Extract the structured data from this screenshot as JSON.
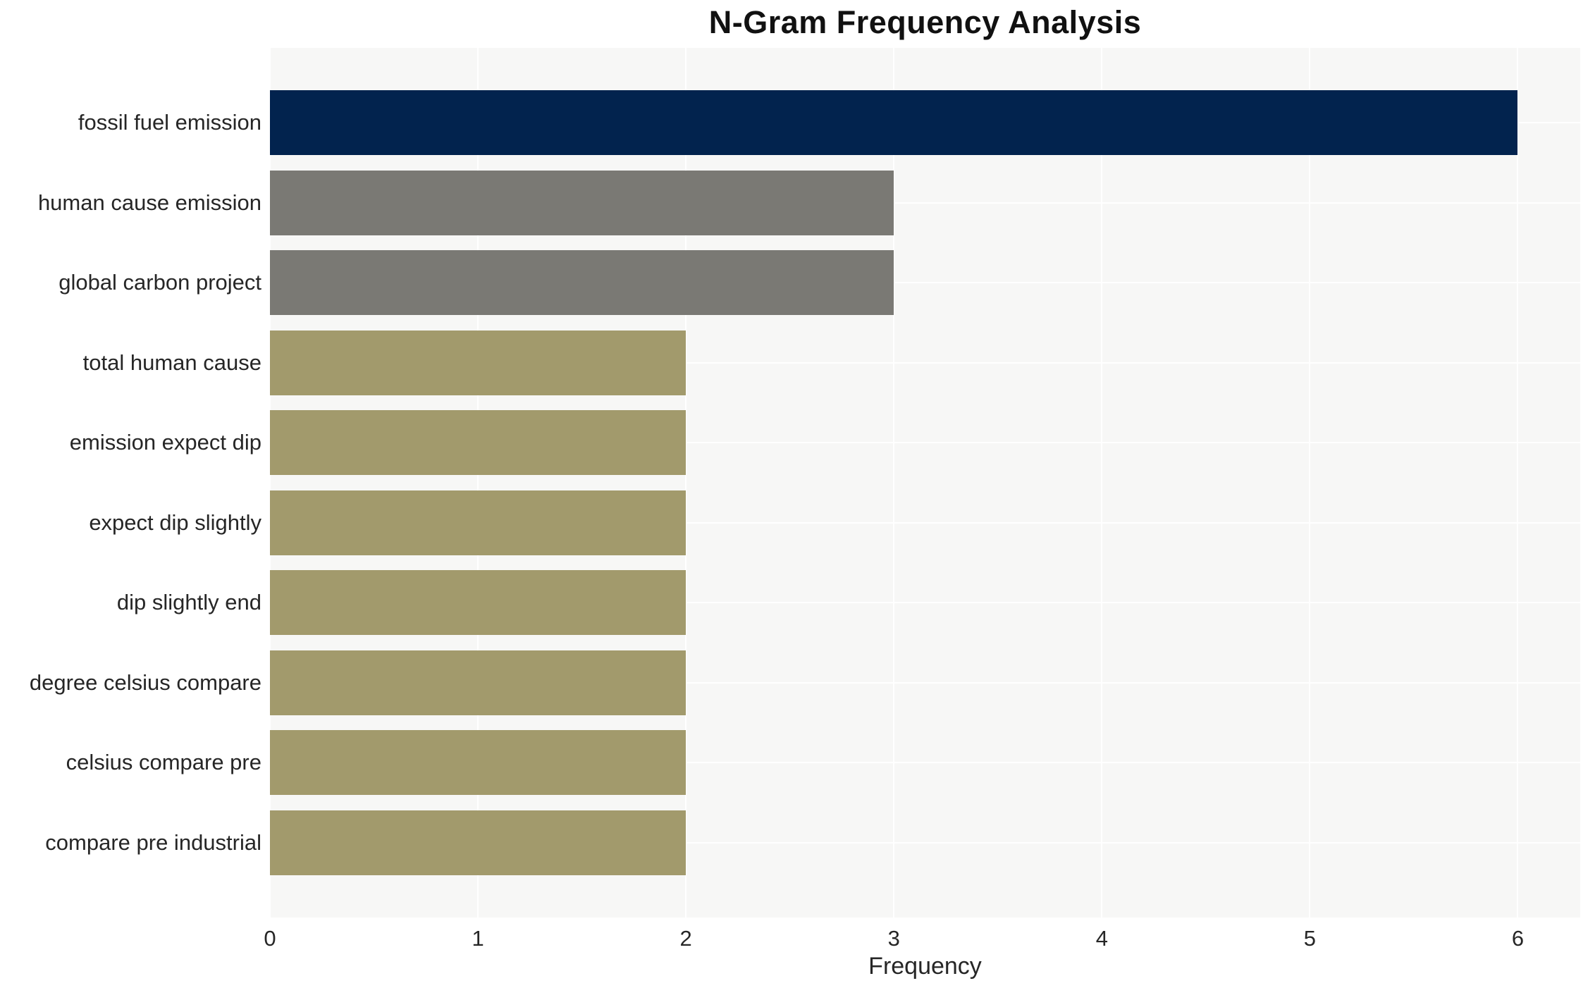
{
  "chart": {
    "title": "N-Gram Frequency Analysis",
    "xlabel": "Frequency"
  },
  "chart_data": {
    "type": "bar",
    "orientation": "horizontal",
    "title": "N-Gram Frequency Analysis",
    "xlabel": "Frequency",
    "ylabel": "",
    "categories": [
      "fossil fuel emission",
      "human cause emission",
      "global carbon project",
      "total human cause",
      "emission expect dip",
      "expect dip slightly",
      "dip slightly end",
      "degree celsius compare",
      "celsius compare pre",
      "compare pre industrial"
    ],
    "values": [
      6,
      3,
      3,
      2,
      2,
      2,
      2,
      2,
      2,
      2
    ],
    "bar_colors": [
      "#02234e",
      "#7a7974",
      "#7a7974",
      "#a29a6c",
      "#a29a6c",
      "#a29a6c",
      "#a29a6c",
      "#a29a6c",
      "#a29a6c",
      "#a29a6c"
    ],
    "xticks": [
      0,
      1,
      2,
      3,
      4,
      5,
      6
    ],
    "xlim": [
      0,
      6.3
    ],
    "grid": true,
    "legend": false,
    "plot_background": "#f7f7f6",
    "gridline_color": "#ffffff",
    "highlight_color": "#02234e",
    "secondary_color": "#7a7974",
    "base_color": "#a29a6c",
    "text_color": "#262626"
  }
}
